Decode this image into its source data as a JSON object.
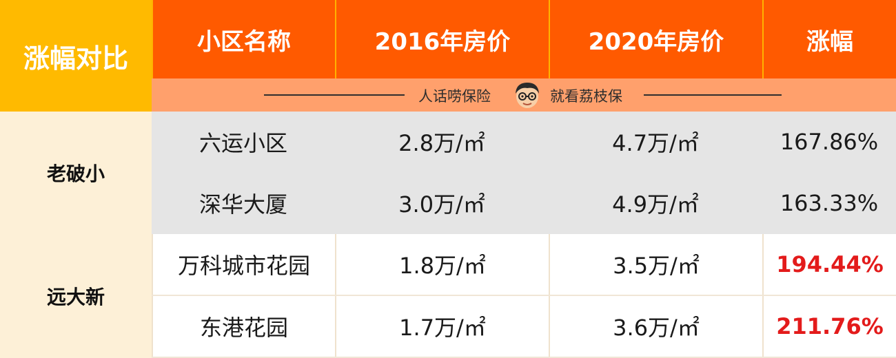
{
  "header": {
    "corner": "涨幅对比",
    "columns": [
      "小区名称",
      "2016年房价",
      "2020年房价",
      "涨幅"
    ]
  },
  "slogan": {
    "left": "人话唠保险",
    "right": "就看荔枝保",
    "icon": "cartoon-face-icon"
  },
  "groups": [
    {
      "label": "老破小"
    },
    {
      "label": "远大新"
    }
  ],
  "rows": [
    {
      "name": "六运小区",
      "p2016": "2.8万/㎡",
      "p2020": "4.7万/㎡",
      "rise": "167.86%"
    },
    {
      "name": "深华大厦",
      "p2016": "3.0万/㎡",
      "p2020": "4.9万/㎡",
      "rise": "163.33%"
    },
    {
      "name": "万科城市花园",
      "p2016": "1.8万/㎡",
      "p2020": "3.5万/㎡",
      "rise": "194.44%"
    },
    {
      "name": "东港花园",
      "p2016": "1.7万/㎡",
      "p2020": "3.6万/㎡",
      "rise": "211.76%"
    }
  ],
  "colors": {
    "header_orange": "#ff5a00",
    "corner_yellow": "#ffba00",
    "highlight_red": "#e31b1b"
  }
}
